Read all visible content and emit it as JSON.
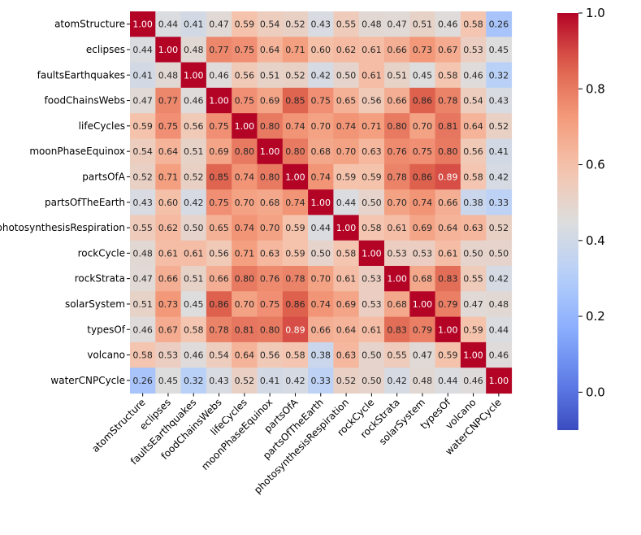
{
  "chart_data": {
    "type": "heatmap",
    "title": "",
    "xlabel": "",
    "ylabel": "",
    "labels": [
      "atomStructure",
      "eclipses",
      "faultsEarthquakes",
      "foodChainsWebs",
      "lifeCycles",
      "moonPhaseEquinox",
      "partsOfA",
      "partsOfTheEarth",
      "photosynthesisRespiration",
      "rockCycle",
      "rockStrata",
      "solarSystem",
      "typesOf",
      "volcano",
      "waterCNPCycle"
    ],
    "values": [
      [
        1.0,
        0.44,
        0.41,
        0.47,
        0.59,
        0.54,
        0.52,
        0.43,
        0.55,
        0.48,
        0.47,
        0.51,
        0.46,
        0.58,
        0.26
      ],
      [
        0.44,
        1.0,
        0.48,
        0.77,
        0.75,
        0.64,
        0.71,
        0.6,
        0.62,
        0.61,
        0.66,
        0.73,
        0.67,
        0.53,
        0.45
      ],
      [
        0.41,
        0.48,
        1.0,
        0.46,
        0.56,
        0.51,
        0.52,
        0.42,
        0.5,
        0.61,
        0.51,
        0.45,
        0.58,
        0.46,
        0.32
      ],
      [
        0.47,
        0.77,
        0.46,
        1.0,
        0.75,
        0.69,
        0.85,
        0.75,
        0.65,
        0.56,
        0.66,
        0.86,
        0.78,
        0.54,
        0.43
      ],
      [
        0.59,
        0.75,
        0.56,
        0.75,
        1.0,
        0.8,
        0.74,
        0.7,
        0.74,
        0.71,
        0.8,
        0.7,
        0.81,
        0.64,
        0.52
      ],
      [
        0.54,
        0.64,
        0.51,
        0.69,
        0.8,
        1.0,
        0.8,
        0.68,
        0.7,
        0.63,
        0.76,
        0.75,
        0.8,
        0.56,
        0.41
      ],
      [
        0.52,
        0.71,
        0.52,
        0.85,
        0.74,
        0.8,
        1.0,
        0.74,
        0.59,
        0.59,
        0.78,
        0.86,
        0.89,
        0.58,
        0.42
      ],
      [
        0.43,
        0.6,
        0.42,
        0.75,
        0.7,
        0.68,
        0.74,
        1.0,
        0.44,
        0.5,
        0.7,
        0.74,
        0.66,
        0.38,
        0.33
      ],
      [
        0.55,
        0.62,
        0.5,
        0.65,
        0.74,
        0.7,
        0.59,
        0.44,
        1.0,
        0.58,
        0.61,
        0.69,
        0.64,
        0.63,
        0.52
      ],
      [
        0.48,
        0.61,
        0.61,
        0.56,
        0.71,
        0.63,
        0.59,
        0.5,
        0.58,
        1.0,
        0.53,
        0.53,
        0.61,
        0.5,
        0.5
      ],
      [
        0.47,
        0.66,
        0.51,
        0.66,
        0.8,
        0.76,
        0.78,
        0.7,
        0.61,
        0.53,
        1.0,
        0.68,
        0.83,
        0.55,
        0.42
      ],
      [
        0.51,
        0.73,
        0.45,
        0.86,
        0.7,
        0.75,
        0.86,
        0.74,
        0.69,
        0.53,
        0.68,
        1.0,
        0.79,
        0.47,
        0.48
      ],
      [
        0.46,
        0.67,
        0.58,
        0.78,
        0.81,
        0.8,
        0.89,
        0.66,
        0.64,
        0.61,
        0.83,
        0.79,
        1.0,
        0.59,
        0.44
      ],
      [
        0.58,
        0.53,
        0.46,
        0.54,
        0.64,
        0.56,
        0.58,
        0.38,
        0.63,
        0.5,
        0.55,
        0.47,
        0.59,
        1.0,
        0.46
      ],
      [
        0.26,
        0.45,
        0.32,
        0.43,
        0.52,
        0.41,
        0.42,
        0.33,
        0.52,
        0.5,
        0.42,
        0.48,
        0.44,
        0.46,
        1.0
      ]
    ],
    "value_format_decimals": 2,
    "colormap": "coolwarm",
    "vmin": -0.1,
    "vmax": 1.0,
    "colorbar": {
      "ticks": [
        0.0,
        0.2,
        0.4,
        0.6,
        0.8,
        1.0
      ],
      "tick_labels": [
        "0.0",
        "0.2",
        "0.4",
        "0.6",
        "0.8",
        "1.0"
      ],
      "placement": "right"
    },
    "grid": false,
    "legend": "none"
  }
}
